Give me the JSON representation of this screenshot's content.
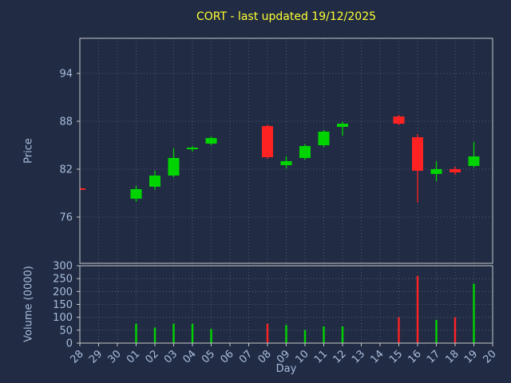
{
  "chart_data": {
    "type": "candlestick",
    "title": "CORT - last updated 19/12/2025",
    "xlabel": "Day",
    "ylabel_price": "Price",
    "ylabel_volume": "Volume (0000)",
    "x_ticks": [
      "28",
      "29",
      "30",
      "01",
      "02",
      "03",
      "04",
      "05",
      "06",
      "07",
      "08",
      "09",
      "10",
      "11",
      "12",
      "13",
      "14",
      "15",
      "16",
      "17",
      "18",
      "19",
      "20"
    ],
    "price_ticks": [
      76,
      82,
      88,
      94
    ],
    "price_range": [
      70.2,
      98.4
    ],
    "volume_ticks": [
      0,
      50,
      100,
      150,
      200,
      250,
      300
    ],
    "volume_range": [
      0,
      300
    ],
    "grid": true,
    "legend": "none",
    "colors": {
      "up": "#00d400",
      "down": "#ff2222",
      "background": "#212c44",
      "grid": "#9aa5b8",
      "spine": "#c8c8c8",
      "tick_label": "#a9bcdc",
      "title": "#ffff33"
    },
    "candles": [
      {
        "day": "28",
        "open": 79.6,
        "high": 79.7,
        "low": 79.3,
        "close": 79.4,
        "volume": 0
      },
      {
        "day": "01",
        "open": 78.3,
        "high": 79.9,
        "low": 77.9,
        "close": 79.5,
        "volume": 75
      },
      {
        "day": "02",
        "open": 79.8,
        "high": 81.8,
        "low": 79.4,
        "close": 81.2,
        "volume": 60
      },
      {
        "day": "03",
        "open": 81.2,
        "high": 84.6,
        "low": 81.0,
        "close": 83.4,
        "volume": 75
      },
      {
        "day": "04",
        "open": 84.5,
        "high": 84.9,
        "low": 84.2,
        "close": 84.7,
        "volume": 75
      },
      {
        "day": "05",
        "open": 85.2,
        "high": 86.1,
        "low": 85.0,
        "close": 85.9,
        "volume": 55
      },
      {
        "day": "08",
        "open": 87.4,
        "high": 87.6,
        "low": 83.3,
        "close": 83.5,
        "volume": 75
      },
      {
        "day": "09",
        "open": 82.5,
        "high": 83.6,
        "low": 82.1,
        "close": 83.0,
        "volume": 70
      },
      {
        "day": "10",
        "open": 83.4,
        "high": 85.1,
        "low": 83.2,
        "close": 84.9,
        "volume": 50
      },
      {
        "day": "11",
        "open": 85.0,
        "high": 86.9,
        "low": 84.8,
        "close": 86.7,
        "volume": 65
      },
      {
        "day": "12",
        "open": 87.3,
        "high": 87.9,
        "low": 86.2,
        "close": 87.7,
        "volume": 65
      },
      {
        "day": "15",
        "open": 88.6,
        "high": 88.8,
        "low": 87.5,
        "close": 87.7,
        "volume": 100
      },
      {
        "day": "16",
        "open": 86.0,
        "high": 86.4,
        "low": 77.8,
        "close": 81.8,
        "volume": 260
      },
      {
        "day": "17",
        "open": 81.4,
        "high": 83.0,
        "low": 80.5,
        "close": 82.0,
        "volume": 90
      },
      {
        "day": "18",
        "open": 82.0,
        "high": 82.3,
        "low": 81.3,
        "close": 81.6,
        "volume": 100
      },
      {
        "day": "19",
        "open": 82.4,
        "high": 85.4,
        "low": 82.2,
        "close": 83.6,
        "volume": 230
      }
    ]
  }
}
